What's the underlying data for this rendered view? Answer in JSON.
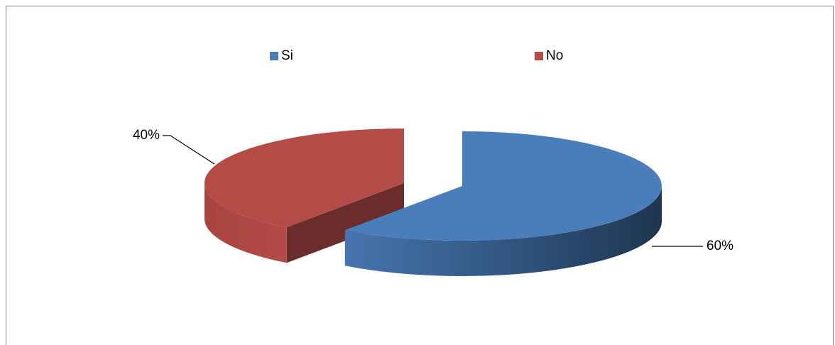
{
  "chart_data": {
    "type": "pie",
    "style": "3d-exploded",
    "legend_position": "top",
    "series": [
      {
        "name": "Si",
        "value": 60,
        "data_label": "60%",
        "color": "#4A7EBB"
      },
      {
        "name": "No",
        "value": 40,
        "data_label": "40%",
        "color": "#B34B47"
      }
    ]
  }
}
